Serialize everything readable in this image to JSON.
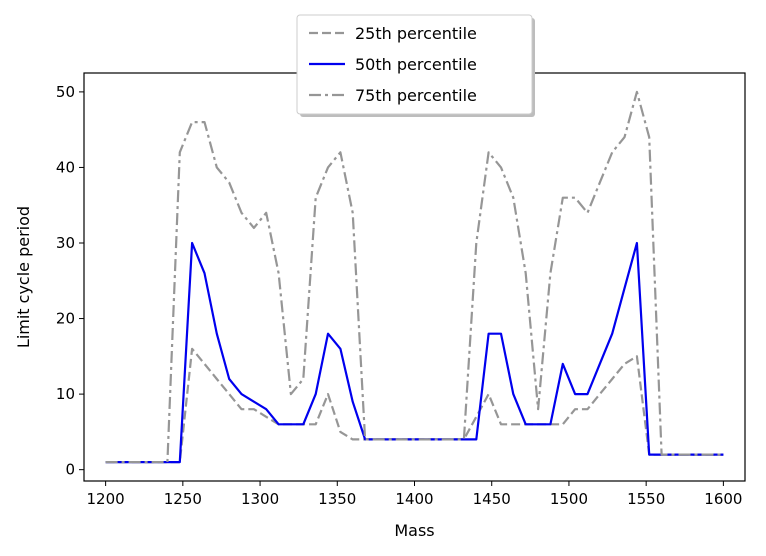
{
  "chart_data": {
    "type": "line",
    "title": "",
    "xlabel": "Mass",
    "ylabel": "Limit cycle period",
    "xlim": [
      1186,
      1614
    ],
    "ylim": [
      -1.5,
      52.5
    ],
    "xticks": [
      1200,
      1250,
      1300,
      1350,
      1400,
      1450,
      1500,
      1550,
      1600
    ],
    "yticks": [
      0,
      10,
      20,
      30,
      40,
      50
    ],
    "grid": false,
    "legend_position": "top-center",
    "x": [
      1200,
      1208,
      1216,
      1224,
      1232,
      1240,
      1248,
      1256,
      1264,
      1272,
      1280,
      1288,
      1296,
      1304,
      1312,
      1320,
      1328,
      1336,
      1344,
      1352,
      1360,
      1368,
      1376,
      1384,
      1392,
      1400,
      1408,
      1416,
      1424,
      1432,
      1440,
      1448,
      1456,
      1464,
      1472,
      1480,
      1488,
      1496,
      1504,
      1512,
      1520,
      1528,
      1536,
      1544,
      1552,
      1560,
      1568,
      1576,
      1584,
      1592,
      1600
    ],
    "series": [
      {
        "name": "25th percentile",
        "style": "dashed",
        "color": "#969696",
        "values": [
          1,
          1,
          1,
          1,
          1,
          1,
          1,
          16,
          14,
          12,
          10,
          8,
          8,
          7,
          6,
          6,
          6,
          6,
          10,
          5,
          4,
          4,
          4,
          4,
          4,
          4,
          4,
          4,
          4,
          4,
          7,
          10,
          6,
          6,
          6,
          6,
          6,
          6,
          8,
          8,
          10,
          12,
          14,
          15,
          2,
          2,
          2,
          2,
          2,
          2,
          2
        ]
      },
      {
        "name": "50th percentile",
        "style": "solid",
        "color": "#0000ee",
        "values": [
          1,
          1,
          1,
          1,
          1,
          1,
          1,
          30,
          26,
          18,
          12,
          10,
          9,
          8,
          6,
          6,
          6,
          10,
          18,
          16,
          9,
          4,
          4,
          4,
          4,
          4,
          4,
          4,
          4,
          4,
          4,
          18,
          18,
          10,
          6,
          6,
          6,
          14,
          10,
          10,
          14,
          18,
          24,
          30,
          2,
          2,
          2,
          2,
          2,
          2,
          2
        ]
      },
      {
        "name": "75th percentile",
        "style": "dashdot",
        "color": "#969696",
        "values": [
          1,
          1,
          1,
          1,
          1,
          1,
          42,
          46,
          46,
          40,
          38,
          34,
          32,
          34,
          26,
          10,
          12,
          36,
          40,
          42,
          34,
          4,
          4,
          4,
          4,
          4,
          4,
          4,
          4,
          4,
          30,
          42,
          40,
          36,
          26,
          8,
          26,
          36,
          36,
          34,
          38,
          42,
          44,
          50,
          44,
          2,
          2,
          2,
          2,
          2,
          2
        ]
      }
    ]
  }
}
